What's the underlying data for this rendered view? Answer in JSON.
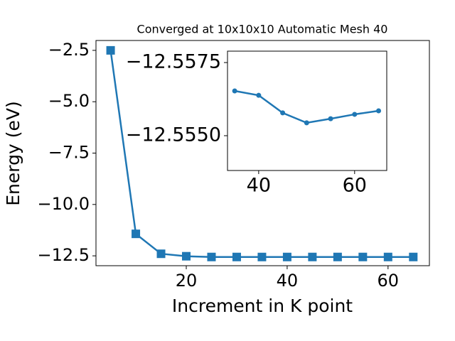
{
  "chart_data": [
    {
      "type": "line",
      "title": "Converged at 10x10x10 Automatic Mesh 40",
      "x_label": "Increment in K point",
      "y_label": "Energy (eV)",
      "x": [
        5,
        10,
        15,
        20,
        25,
        30,
        35,
        40,
        45,
        50,
        55,
        60,
        65
      ],
      "series": [
        {
          "color": "#1f77b4",
          "marker": "square",
          "values": [
            -2.5,
            -11.43,
            -12.4,
            -12.52,
            -12.556,
            -12.556,
            -12.55653,
            -12.55638,
            -12.55578,
            -12.55544,
            -12.55558,
            -12.55573,
            -12.55585
          ]
        }
      ],
      "xlim": [
        2.1,
        68.2
      ],
      "xticks": [
        20,
        40,
        60
      ],
      "ylim": [
        -12.98,
        -2.02
      ],
      "yticks": [
        {
          "value": -12.5,
          "label": "−12.5"
        },
        {
          "value": -10.0,
          "label": "−10.0"
        },
        {
          "value": -7.5,
          "label": "−7.5"
        },
        {
          "value": -5.0,
          "label": "−5.0"
        },
        {
          "value": -2.5,
          "label": "−2.5"
        }
      ]
    },
    {
      "type": "line",
      "x": [
        35,
        40,
        45,
        50,
        55,
        60,
        65
      ],
      "series": [
        {
          "color": "#1f77b4",
          "marker": "circle",
          "values": [
            -12.55653,
            -12.55638,
            -12.55578,
            -12.55544,
            -12.55558,
            -12.55573,
            -12.55585
          ]
        }
      ],
      "xlim": [
        33.5,
        66.7
      ],
      "xticks": [
        40,
        60
      ],
      "ylim": [
        -12.55381,
        -12.55789
      ],
      "yticks": [
        {
          "value": -12.5575,
          "label": "−12.5575"
        },
        {
          "value": -12.555,
          "label": "−12.5550"
        }
      ]
    }
  ]
}
